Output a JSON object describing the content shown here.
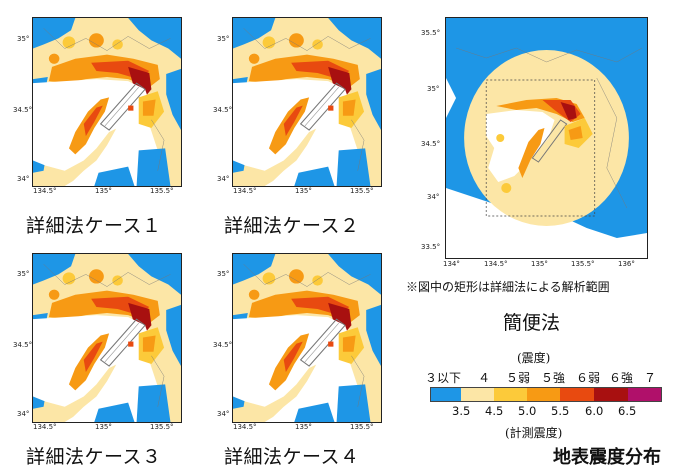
{
  "maps": [
    {
      "id": "case1",
      "caption": "詳細法ケース１",
      "xticks": [
        "134.5°",
        "135°",
        "135.5°"
      ],
      "yticks": [
        "35°",
        "34.5°",
        "34°"
      ]
    },
    {
      "id": "case2",
      "caption": "詳細法ケース２",
      "xticks": [
        "134.5°",
        "135°",
        "135.5°"
      ],
      "yticks": [
        "35°",
        "34.5°",
        "34°"
      ]
    },
    {
      "id": "case3",
      "caption": "詳細法ケース３",
      "xticks": [
        "134.5°",
        "135°",
        "135.5°"
      ],
      "yticks": [
        "35°",
        "34.5°",
        "34°"
      ]
    },
    {
      "id": "case4",
      "caption": "詳細法ケース４",
      "xticks": [
        "134.5°",
        "135°",
        "135.5°"
      ],
      "yticks": [
        "35°",
        "34.5°",
        "34°"
      ]
    },
    {
      "id": "simple",
      "caption": "簡便法",
      "xticks": [
        "134°",
        "134.5°",
        "135°",
        "135.5°",
        "136°"
      ],
      "yticks": [
        "35.5°",
        "35°",
        "34.5°",
        "34°",
        "33.5°"
      ]
    }
  ],
  "note": "※図中の矩形は詳細法による解析範囲",
  "legend": {
    "title": "(震度)",
    "subtitle": "(計測震度)",
    "classes": [
      "３以下",
      "４",
      "５弱",
      "５強",
      "６弱",
      "６強",
      "７"
    ],
    "ticks": [
      "3.5",
      "4.5",
      "5.0",
      "5.5",
      "6.0",
      "6.5"
    ],
    "colors": [
      "#1e96e6",
      "#fce6a6",
      "#fcca3a",
      "#f79a14",
      "#e84a10",
      "#a81010",
      "#b0106a"
    ]
  },
  "figure_title": "地表震度分布"
}
